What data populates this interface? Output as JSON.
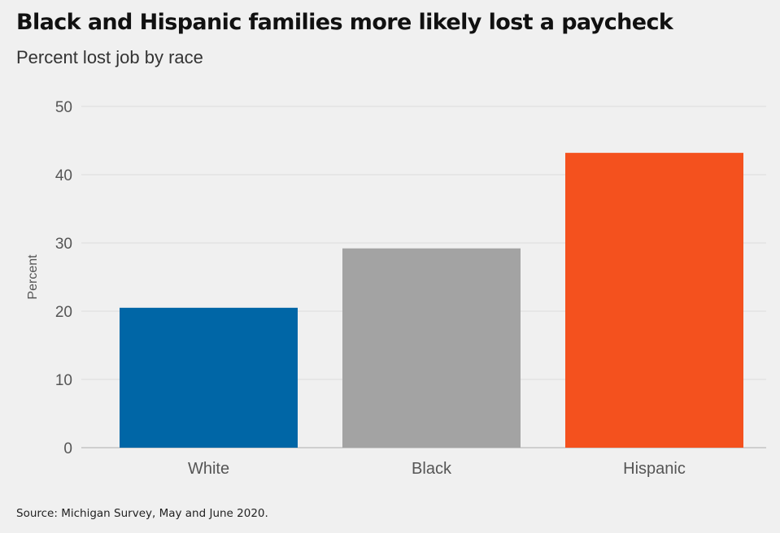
{
  "chart_data": {
    "type": "bar",
    "title": "Black and Hispanic families more likely lost a paycheck",
    "subtitle": "Percent lost job by race",
    "xlabel": "",
    "ylabel": "Percent",
    "categories": [
      "White",
      "Black",
      "Hispanic"
    ],
    "values": [
      20.5,
      29.2,
      43.2
    ],
    "colors": [
      "#0066a6",
      "#a3a3a3",
      "#f4511e"
    ],
    "ylim": [
      0,
      50
    ],
    "yticks": [
      0,
      10,
      20,
      30,
      40,
      50
    ],
    "grid": true,
    "source": "Source: Michigan Survey, May and June 2020."
  }
}
